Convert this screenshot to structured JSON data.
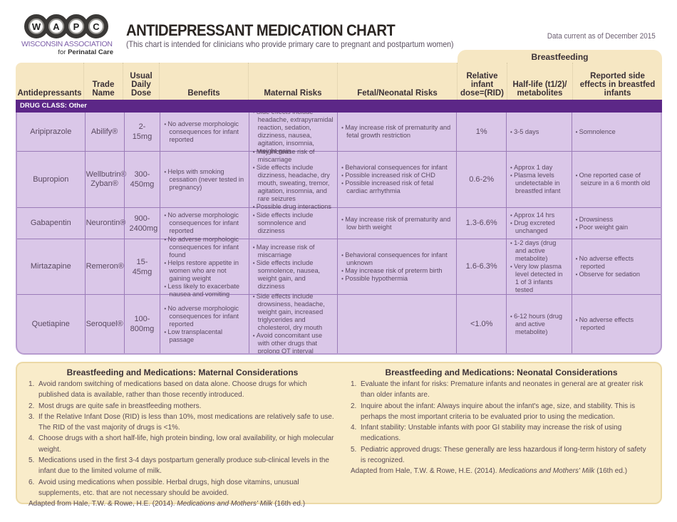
{
  "logo": {
    "letters": [
      "W",
      "A",
      "P",
      "C"
    ],
    "line1": "WISCONSIN ASSOCIATION",
    "line2_prefix": "for ",
    "line2_bold": "Perinatal Care"
  },
  "header": {
    "title": "ANTIDEPRESSANT MEDICATION CHART",
    "subtitle": "(This chart is intended for clinicians who provide primary care to pregnant and postpartum women)",
    "date": "Data current as of December 2015"
  },
  "table": {
    "group_header": "Breastfeeding",
    "columns": [
      "Antidepressants",
      "Trade Name",
      "Usual Daily Dose",
      "Benefits",
      "Maternal Risks",
      "Fetal/Neonatal Risks",
      "Relative infant dose=(RID)",
      "Half-life (t1/2)/ metabolites",
      "Reported side effects in breastfed infants"
    ],
    "drug_class": "DRUG CLASS: Other",
    "rows": [
      {
        "drug": "Aripiprazole",
        "trade": "Abilify®",
        "dose": "2-15mg",
        "benefits": [
          "No adverse morphologic consequences for infant reported"
        ],
        "maternal": [
          "Side effects include headache, extrapyramidal reaction, sedation, dizziness, nausea, agitation, insomnia, weight gain"
        ],
        "fetal": [
          "May increase risk of prematurity and fetal growth restriction"
        ],
        "rid": "1%",
        "halflife": [
          "3-5 days"
        ],
        "side_effects": [
          "Somnolence"
        ]
      },
      {
        "drug": "Bupropion",
        "trade": "Wellbutrin® Zyban®",
        "dose": "300- 450mg",
        "benefits": [
          "Helps with smoking cessation (never tested in pregnancy)"
        ],
        "maternal": [
          "May increase risk of miscarriage",
          "Side effects include dizziness, headache, dry mouth, sweating, tremor, agitation, insomnia, and rare seizures",
          "Possible drug interactions"
        ],
        "fetal": [
          "Behavioral consequences for infant",
          "Possible increased risk of CHD",
          "Possible increased risk of fetal cardiac arrhythmia"
        ],
        "rid": "0.6-2%",
        "halflife": [
          "Approx 1 day",
          "Plasma levels undetectable in breastfed infant"
        ],
        "side_effects": [
          "One reported case of seizure in a 6 month old"
        ]
      },
      {
        "drug": "Gabapentin",
        "trade": "Neurontin®",
        "dose": "900- 2400mg",
        "benefits": [
          "No adverse morphologic consequences for infant reported"
        ],
        "maternal": [
          "Side effects include somnolence and dizziness"
        ],
        "fetal": [
          "May increase risk of prematurity and low birth weight"
        ],
        "rid": "1.3-6.6%",
        "halflife": [
          "Approx 14 hrs",
          "Drug excreted unchanged"
        ],
        "side_effects": [
          "Drowsiness",
          "Poor weight gain"
        ]
      },
      {
        "drug": "Mirtazapine",
        "trade": "Remeron®",
        "dose": "15-45mg",
        "benefits": [
          "No adverse morphologic consequences for infant found",
          "Helps restore appetite in women who are not gaining weight",
          "Less likely to exacerbate nausea and vomiting"
        ],
        "maternal": [
          "May increase risk of miscarriage",
          "Side effects include somnolence, nausea, weight gain, and dizziness"
        ],
        "fetal": [
          "Behavioral consequences for infant unknown",
          "May increase risk of preterm birth",
          "Possible hypothermia"
        ],
        "rid": "1.6-6.3%",
        "halflife": [
          "1-2 days (drug and active metabolite)",
          "Very low plasma level detected in 1 of 3 infants tested"
        ],
        "side_effects": [
          "No adverse effects reported",
          "Observe for sedation"
        ]
      },
      {
        "drug": "Quetiapine",
        "trade": "Seroquel®",
        "dose": "100- 800mg",
        "benefits": [
          "No adverse morphologic consequences for infant reported",
          "Low transplacental passage"
        ],
        "maternal": [
          "Side effects include drowsiness, headache, weight gain, increased triglycerides and cholesterol, dry mouth",
          "Avoid concomitant use with other drugs that prolong QT interval"
        ],
        "fetal": [],
        "rid": "<1.0%",
        "halflife": [
          "6-12 hours (drug and active metabolite)"
        ],
        "side_effects": [
          "No adverse effects reported"
        ]
      }
    ]
  },
  "maternal_notes": {
    "title": "Breastfeeding and Medications: Maternal Considerations",
    "items": [
      {
        "num": "1.",
        "text": "Avoid random switching of medications based on data alone. Choose drugs for which published data is available, rather than those recently introduced."
      },
      {
        "num": "2.",
        "text": "Most drugs are quite safe in breastfeeding mothers."
      },
      {
        "num": "3.",
        "text": "If the Relative Infant Dose (RID) is less than 10%, most medications are relatively safe to use. The RID of the vast majority of drugs is <1%."
      },
      {
        "num": "4.",
        "text": "Choose drugs with a short half-life, high protein binding, low oral availability, or high molecular weight."
      },
      {
        "num": "5.",
        "text": "Medications used in the first 3-4 days postpartum generally produce sub-clinical levels in the infant due to the limited volume of milk."
      },
      {
        "num": "6.",
        "text": "Avoid using medications when possible. Herbal drugs, high dose vitamins, unusual supplements, etc. that are not necessary should be avoided."
      }
    ],
    "cite_prefix": "Adapted from Hale, T.W. & Rowe, H.E. (2014). ",
    "cite_title": "Medications and Mothers' Milk",
    "cite_suffix": " (16th ed.)"
  },
  "neonatal_notes": {
    "title": "Breastfeeding and Medications: Neonatal Considerations",
    "items": [
      {
        "num": "1.",
        "text": "Evaluate the infant for risks: Premature infants and neonates in general are at greater risk than older infants are."
      },
      {
        "num": "2.",
        "text": "Inquire about the infant: Always inquire about the infant's age, size, and stability. This is perhaps the most important criteria to be evaluated prior to using the medication."
      },
      {
        "num": "4.",
        "text": "Infant stability: Unstable infants with poor GI stability may increase the risk of using medications."
      },
      {
        "num": "5.",
        "text": "Pediatric approved drugs: These generally are less hazardous if long-term history of safety is recognized."
      }
    ],
    "cite_prefix": "Adapted from Hale, T.W. & Rowe, H.E. (2014). ",
    "cite_title": "Medications and Mothers' Milk",
    "cite_suffix": " (16th ed.)"
  }
}
